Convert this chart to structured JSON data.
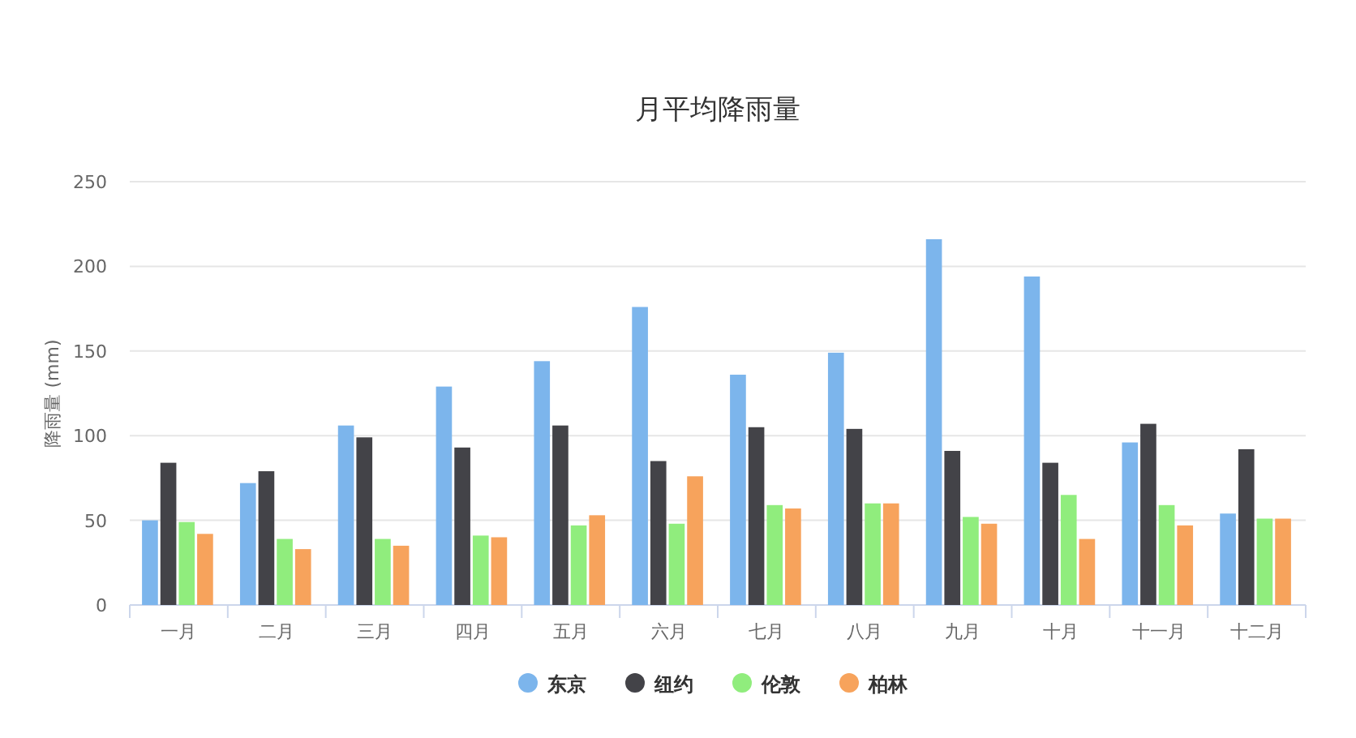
{
  "chart_data": {
    "type": "bar",
    "title": "月平均降雨量",
    "ylabel": "降雨量 (mm)",
    "categories": [
      "一月",
      "二月",
      "三月",
      "四月",
      "五月",
      "六月",
      "七月",
      "八月",
      "九月",
      "十月",
      "十一月",
      "十二月"
    ],
    "series": [
      {
        "name": "东京",
        "color": "#7cb5ec",
        "values": [
          50,
          72,
          106,
          129,
          144,
          176,
          136,
          149,
          216,
          194,
          96,
          54
        ]
      },
      {
        "name": "纽约",
        "color": "#434348",
        "values": [
          84,
          79,
          99,
          93,
          106,
          85,
          105,
          104,
          91,
          84,
          107,
          92
        ]
      },
      {
        "name": "伦敦",
        "color": "#90ed7d",
        "values": [
          49,
          39,
          39,
          41,
          47,
          48,
          59,
          60,
          52,
          65,
          59,
          51
        ]
      },
      {
        "name": "柏林",
        "color": "#f7a35c",
        "values": [
          42,
          33,
          35,
          40,
          53,
          76,
          57,
          60,
          48,
          39,
          47,
          51
        ]
      }
    ],
    "ylim": [
      0,
      250
    ],
    "yticks": [
      0,
      50,
      100,
      150,
      200,
      250
    ],
    "grid": "y",
    "legend": "bottom"
  }
}
